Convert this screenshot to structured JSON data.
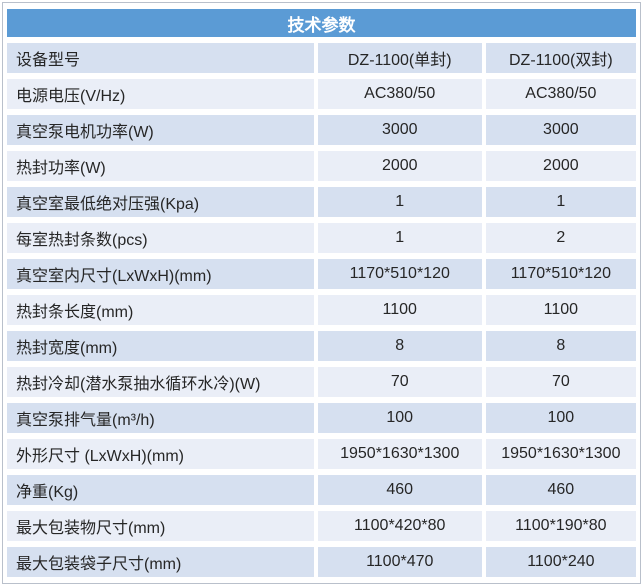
{
  "colors": {
    "header_bg": "#5b9bd5",
    "band_dark": "#d6e0f0",
    "band_light": "#eaeef7",
    "text": "#262626"
  },
  "table": {
    "title": "技术参数",
    "rows": [
      {
        "label": "设备型号",
        "v1": "DZ-1100(单封)",
        "v2": "DZ-1100(双封)"
      },
      {
        "label": "电源电压(V/Hz)",
        "v1": "AC380/50",
        "v2": "AC380/50"
      },
      {
        "label": "真空泵电机功率(W)",
        "v1": "3000",
        "v2": "3000"
      },
      {
        "label": "热封功率(W)",
        "v1": "2000",
        "v2": "2000"
      },
      {
        "label": "真空室最低绝对压强(Kpa)",
        "v1": "1",
        "v2": "1"
      },
      {
        "label": "每室热封条数(pcs)",
        "v1": "1",
        "v2": "2"
      },
      {
        "label": "真空室内尺寸(LxWxH)(mm)",
        "v1": "1170*510*120",
        "v2": "1170*510*120"
      },
      {
        "label": "热封条长度(mm)",
        "v1": "1100",
        "v2": "1100"
      },
      {
        "label": "热封宽度(mm)",
        "v1": "8",
        "v2": "8"
      },
      {
        "label": "热封冷却(潜水泵抽水循环水冷)(W)",
        "v1": "70",
        "v2": "70"
      },
      {
        "label": "真空泵排气量(m³/h)",
        "v1": "100",
        "v2": "100"
      },
      {
        "label": "外形尺寸 (LxWxH)(mm)",
        "v1": "1950*1630*1300",
        "v2": "1950*1630*1300"
      },
      {
        "label": "净重(Kg)",
        "v1": "460",
        "v2": "460"
      },
      {
        "label": "最大包装物尺寸(mm)",
        "v1": "1100*420*80",
        "v2": "1100*190*80"
      },
      {
        "label": "最大包装袋子尺寸(mm)",
        "v1": "1100*470",
        "v2": "1100*240"
      }
    ]
  }
}
